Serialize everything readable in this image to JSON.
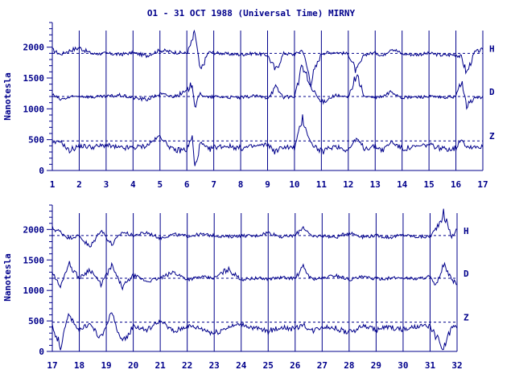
{
  "chart_data": [
    {
      "type": "line",
      "title": "O1 - 31 OCT 1988 (Universal Time) MIRNY",
      "ylabel": "Nanotesla",
      "x_ticks": [
        "1",
        "2",
        "3",
        "4",
        "5",
        "6",
        "7",
        "8",
        "9",
        "10",
        "11",
        "12",
        "13",
        "14",
        "15",
        "16",
        "17"
      ],
      "y_ticks": [
        "0",
        "500",
        "1000",
        "1500",
        "2000"
      ],
      "xlim": [
        1,
        17
      ],
      "ylim": [
        0,
        2400
      ],
      "grid": "vertical lines at each day",
      "series": [
        {
          "name": "H",
          "baseline": 1900,
          "x": [
            1,
            1.3,
            1.6,
            2,
            2.5,
            3,
            3.5,
            4,
            4.5,
            5,
            5.5,
            6,
            6.2,
            6.3,
            6.5,
            6.8,
            7,
            7.5,
            8,
            8.5,
            9,
            9.3,
            9.6,
            10,
            10.3,
            10.6,
            11,
            11.5,
            12,
            12.3,
            12.6,
            13,
            13.3,
            13.6,
            14,
            14.5,
            15,
            15.5,
            16,
            16.2,
            16.4,
            16.7,
            17
          ],
          "values": [
            1960,
            1880,
            1940,
            1990,
            1890,
            1900,
            1880,
            1910,
            1860,
            1950,
            1920,
            1900,
            2100,
            2250,
            1600,
            1920,
            1910,
            1890,
            1880,
            1900,
            1870,
            1620,
            1900,
            1880,
            1960,
            1450,
            1900,
            1920,
            1890,
            1600,
            1880,
            1910,
            1860,
            1990,
            1890,
            1880,
            1900,
            1870,
            1880,
            1840,
            1580,
            1920,
            1960
          ]
        },
        {
          "name": "D",
          "baseline": 1200,
          "x": [
            1,
            1.3,
            1.6,
            2,
            2.5,
            3,
            3.5,
            4,
            4.5,
            5,
            5.5,
            6,
            6.2,
            6.3,
            6.5,
            6.8,
            7,
            7.5,
            8,
            8.5,
            9,
            9.3,
            9.6,
            10,
            10.3,
            10.6,
            11,
            11.5,
            12,
            12.3,
            12.6,
            13,
            13.3,
            13.6,
            14,
            14.5,
            15,
            15.5,
            16,
            16.2,
            16.4,
            16.7,
            17
          ],
          "values": [
            1230,
            1150,
            1180,
            1210,
            1190,
            1200,
            1220,
            1180,
            1150,
            1240,
            1200,
            1280,
            1420,
            1030,
            1250,
            1180,
            1200,
            1190,
            1180,
            1210,
            1180,
            1350,
            1190,
            1200,
            1700,
            1350,
            1100,
            1220,
            1180,
            1560,
            1200,
            1180,
            1200,
            1280,
            1180,
            1190,
            1200,
            1180,
            1200,
            1460,
            1050,
            1180,
            1190
          ]
        },
        {
          "name": "Z",
          "baseline": 480,
          "x": [
            1,
            1.3,
            1.6,
            2,
            2.5,
            3,
            3.5,
            4,
            4.5,
            5,
            5.5,
            6,
            6.2,
            6.3,
            6.5,
            6.8,
            7,
            7.5,
            8,
            8.5,
            9,
            9.3,
            9.6,
            10,
            10.3,
            10.6,
            11,
            11.5,
            12,
            12.3,
            12.6,
            13,
            13.3,
            13.6,
            14,
            14.5,
            15,
            15.5,
            16,
            16.2,
            16.4,
            16.7,
            17
          ],
          "values": [
            430,
            480,
            320,
            400,
            380,
            410,
            360,
            370,
            400,
            560,
            320,
            340,
            550,
            20,
            450,
            330,
            380,
            400,
            360,
            390,
            420,
            300,
            390,
            360,
            850,
            450,
            300,
            400,
            330,
            520,
            360,
            390,
            330,
            470,
            350,
            380,
            420,
            350,
            360,
            520,
            380,
            390,
            380
          ]
        }
      ],
      "labels": [
        "H",
        "D",
        "Z"
      ]
    },
    {
      "type": "line",
      "ylabel": "Nanotesla",
      "x_ticks": [
        "17",
        "18",
        "19",
        "20",
        "21",
        "22",
        "23",
        "24",
        "25",
        "26",
        "27",
        "28",
        "29",
        "30",
        "31",
        "32"
      ],
      "y_ticks": [
        "0",
        "500",
        "1000",
        "1500",
        "2000"
      ],
      "xlim": [
        17,
        32
      ],
      "ylim": [
        0,
        2400
      ],
      "grid": "vertical lines at each day",
      "series": [
        {
          "name": "H",
          "baseline": 1900,
          "x": [
            17,
            17.3,
            17.6,
            18,
            18.4,
            18.8,
            19.2,
            19.6,
            20,
            20.5,
            21,
            21.5,
            22,
            22.5,
            23,
            23.5,
            24,
            24.5,
            25,
            25.5,
            26,
            26.3,
            26.6,
            27,
            27.5,
            28,
            28.5,
            29,
            29.5,
            30,
            30.5,
            31,
            31.2,
            31.5,
            31.8,
            32
          ],
          "values": [
            2020,
            1960,
            1860,
            1900,
            1700,
            2000,
            1750,
            1960,
            1900,
            1950,
            1860,
            1920,
            1890,
            1920,
            1900,
            1880,
            1900,
            1890,
            1950,
            1880,
            1900,
            2050,
            1880,
            1900,
            1870,
            1950,
            1880,
            1900,
            1870,
            1910,
            1880,
            1880,
            2000,
            2260,
            1880,
            2000
          ]
        },
        {
          "name": "D",
          "baseline": 1200,
          "x": [
            17,
            17.3,
            17.6,
            18,
            18.4,
            18.8,
            19.2,
            19.6,
            20,
            20.5,
            21,
            21.5,
            22,
            22.5,
            23,
            23.5,
            24,
            24.5,
            25,
            25.5,
            26,
            26.3,
            26.6,
            27,
            27.5,
            28,
            28.5,
            29,
            29.5,
            30,
            30.5,
            31,
            31.2,
            31.5,
            31.8,
            32
          ],
          "values": [
            1300,
            1050,
            1450,
            1200,
            1350,
            1100,
            1400,
            1050,
            1250,
            1150,
            1200,
            1300,
            1180,
            1220,
            1200,
            1350,
            1180,
            1200,
            1190,
            1210,
            1200,
            1380,
            1190,
            1200,
            1250,
            1180,
            1220,
            1190,
            1200,
            1210,
            1190,
            1230,
            1050,
            1420,
            1180,
            1100
          ]
        },
        {
          "name": "Z",
          "baseline": 480,
          "x": [
            17,
            17.3,
            17.6,
            18,
            18.4,
            18.8,
            19.2,
            19.6,
            20,
            20.5,
            21,
            21.5,
            22,
            22.5,
            23,
            23.5,
            24,
            24.5,
            25,
            25.5,
            26,
            26.3,
            26.6,
            27,
            27.5,
            28,
            28.5,
            29,
            29.5,
            30,
            30.5,
            31,
            31.2,
            31.5,
            31.8,
            32
          ],
          "values": [
            420,
            80,
            600,
            350,
            450,
            200,
            650,
            100,
            420,
            350,
            500,
            320,
            420,
            380,
            300,
            400,
            450,
            380,
            330,
            400,
            360,
            450,
            330,
            410,
            380,
            300,
            420,
            360,
            400,
            350,
            400,
            420,
            250,
            20,
            400,
            380
          ]
        }
      ],
      "labels": [
        "H",
        "D",
        "Z"
      ]
    }
  ]
}
